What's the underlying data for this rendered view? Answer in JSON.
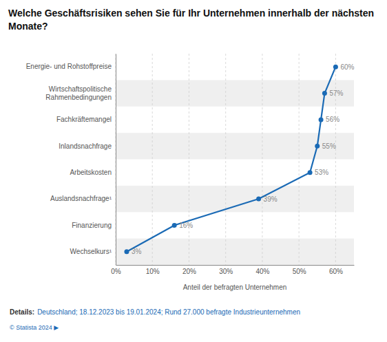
{
  "chart_data": {
    "type": "line",
    "orientation": "horizontal",
    "title": "Welche Geschäftsrisiken sehen Sie für Ihr Unternehmen innerhalb der nächsten\nMonate?",
    "categories": [
      "Energie- und Rohstoffpreise",
      "Wirtschaftspolitische\nRahmenbedingungen",
      "Fachkräftemangel",
      "Inlandsnachfrage",
      "Arbeitskosten",
      "Auslandsnachfrage¹",
      "Finanzierung",
      "Wechselkurs¹"
    ],
    "values": [
      60,
      57,
      56,
      55,
      53,
      39,
      16,
      3
    ],
    "value_labels": [
      "60%",
      "57%",
      "56%",
      "55%",
      "53%",
      "39%",
      "16%",
      "3%"
    ],
    "data_labels": true,
    "color": "#1a6ab5",
    "marker": "circle",
    "xlabel": "Anteil der befragten Unternehmen",
    "xlim": [
      0,
      65
    ],
    "xticks": [
      {
        "value": 0,
        "label": "0%"
      },
      {
        "value": 10,
        "label": "10%"
      },
      {
        "value": 20,
        "label": "20%"
      },
      {
        "value": 30,
        "label": "30%"
      },
      {
        "value": 40,
        "label": "40%"
      },
      {
        "value": 50,
        "label": "50%"
      },
      {
        "value": 60,
        "label": "60%"
      }
    ],
    "grid": true,
    "annotations": [
      "Details:",
      "Deutschland; 18.12.2023 bis 19.01.2024; Rund 27.000 befragte Industrieunternehmen",
      "© Statista 2024  ▶"
    ]
  }
}
